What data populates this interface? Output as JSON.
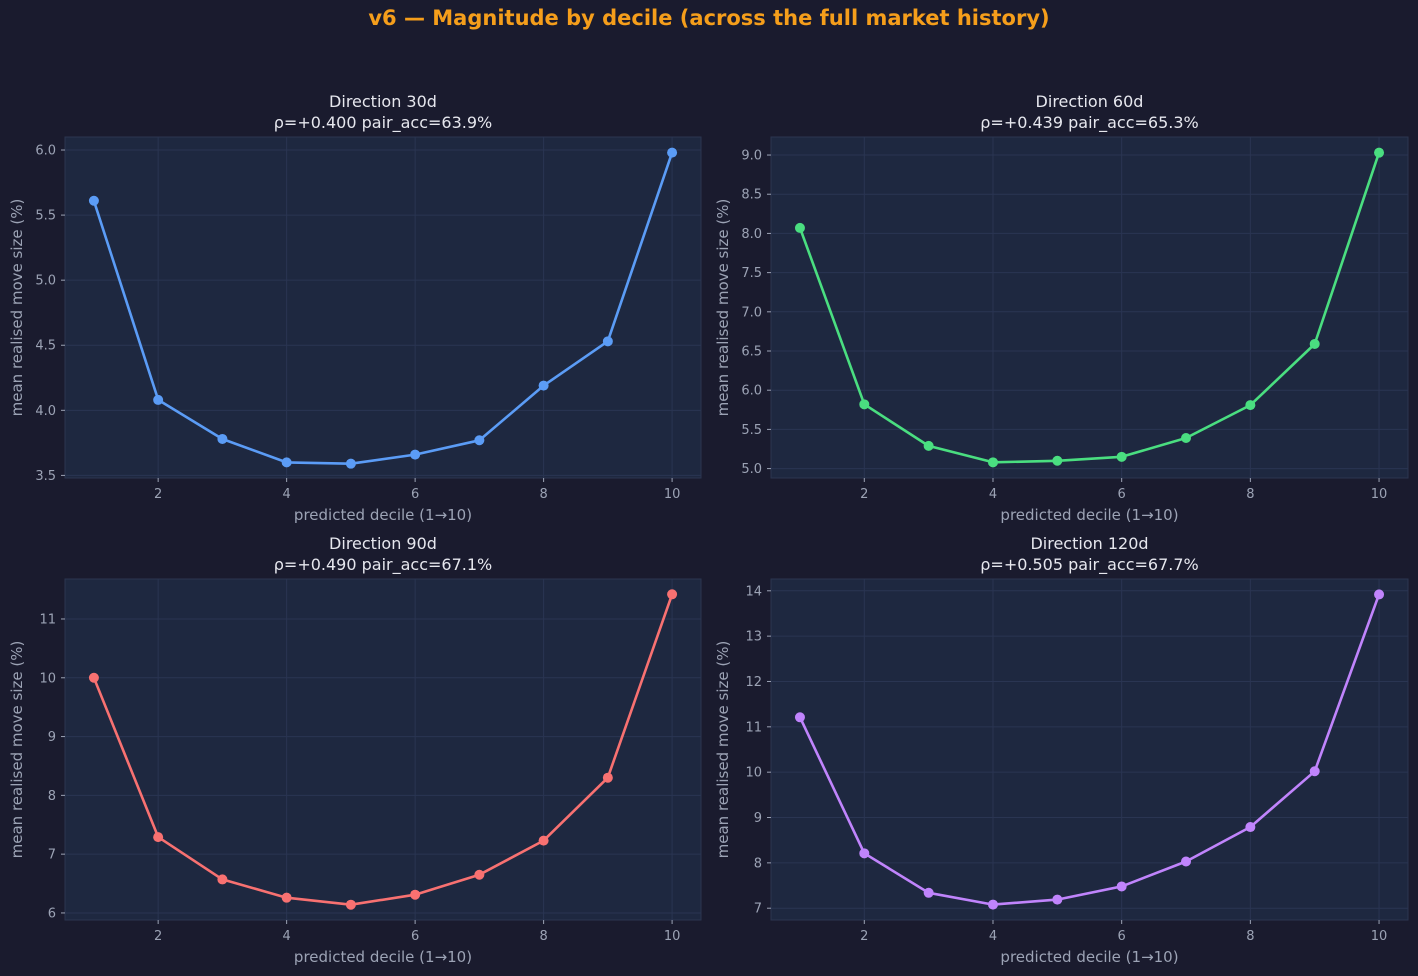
{
  "title": "v6 — Magnitude by decile (across the full market history)",
  "chart_data": [
    {
      "type": "line",
      "title": "Direction 30d",
      "subtitle": "ρ=+0.400  pair_acc=63.9%",
      "xlabel": "predicted decile (1→10)",
      "ylabel": "mean realised move size (%)",
      "x": [
        1,
        2,
        3,
        4,
        5,
        6,
        7,
        8,
        9,
        10
      ],
      "values": [
        5.61,
        4.08,
        3.78,
        3.6,
        3.59,
        3.66,
        3.77,
        4.19,
        4.53,
        5.98
      ],
      "xlim": [
        0.55,
        10.45
      ],
      "ylim": [
        3.48,
        6.1
      ],
      "xticks": [
        2,
        4,
        6,
        8,
        10
      ],
      "yticks": [
        3.5,
        4.0,
        4.5,
        5.0,
        5.5,
        6.0
      ],
      "ytick_labels": [
        "3.5",
        "4.0",
        "4.5",
        "5.0",
        "5.5",
        "6.0"
      ],
      "color": "#5b9cf6",
      "grid": true
    },
    {
      "type": "line",
      "title": "Direction 60d",
      "subtitle": "ρ=+0.439  pair_acc=65.3%",
      "xlabel": "predicted decile (1→10)",
      "ylabel": "mean realised move size (%)",
      "x": [
        1,
        2,
        3,
        4,
        5,
        6,
        7,
        8,
        9,
        10
      ],
      "values": [
        8.07,
        5.82,
        5.29,
        5.08,
        5.1,
        5.15,
        5.39,
        5.81,
        6.59,
        9.03
      ],
      "xlim": [
        0.55,
        10.45
      ],
      "ylim": [
        4.88,
        9.23
      ],
      "xticks": [
        2,
        4,
        6,
        8,
        10
      ],
      "yticks": [
        5.0,
        5.5,
        6.0,
        6.5,
        7.0,
        7.5,
        8.0,
        8.5,
        9.0
      ],
      "ytick_labels": [
        "5.0",
        "5.5",
        "6.0",
        "6.5",
        "7.0",
        "7.5",
        "8.0",
        "8.5",
        "9.0"
      ],
      "color": "#4ade80",
      "grid": true
    },
    {
      "type": "line",
      "title": "Direction 90d",
      "subtitle": "ρ=+0.490  pair_acc=67.1%",
      "xlabel": "predicted decile (1→10)",
      "ylabel": "mean realised move size (%)",
      "x": [
        1,
        2,
        3,
        4,
        5,
        6,
        7,
        8,
        9,
        10
      ],
      "values": [
        10.0,
        7.29,
        6.57,
        6.26,
        6.14,
        6.31,
        6.65,
        7.23,
        8.3,
        11.42
      ],
      "xlim": [
        0.55,
        10.45
      ],
      "ylim": [
        5.88,
        11.68
      ],
      "xticks": [
        2,
        4,
        6,
        8,
        10
      ],
      "yticks": [
        6,
        7,
        8,
        9,
        10,
        11
      ],
      "ytick_labels": [
        "6",
        "7",
        "8",
        "9",
        "10",
        "11"
      ],
      "color": "#f87171",
      "grid": true
    },
    {
      "type": "line",
      "title": "Direction 120d",
      "subtitle": "ρ=+0.505  pair_acc=67.7%",
      "xlabel": "predicted decile (1→10)",
      "ylabel": "mean realised move size (%)",
      "x": [
        1,
        2,
        3,
        4,
        5,
        6,
        7,
        8,
        9,
        10
      ],
      "values": [
        11.21,
        8.21,
        7.34,
        7.08,
        7.19,
        7.48,
        8.03,
        8.79,
        10.02,
        13.92
      ],
      "xlim": [
        0.55,
        10.45
      ],
      "ylim": [
        6.74,
        14.26
      ],
      "xticks": [
        2,
        4,
        6,
        8,
        10
      ],
      "yticks": [
        7,
        8,
        9,
        10,
        11,
        12,
        13,
        14
      ],
      "ytick_labels": [
        "7",
        "8",
        "9",
        "10",
        "11",
        "12",
        "13",
        "14"
      ],
      "color": "#c084fc",
      "grid": true
    }
  ]
}
